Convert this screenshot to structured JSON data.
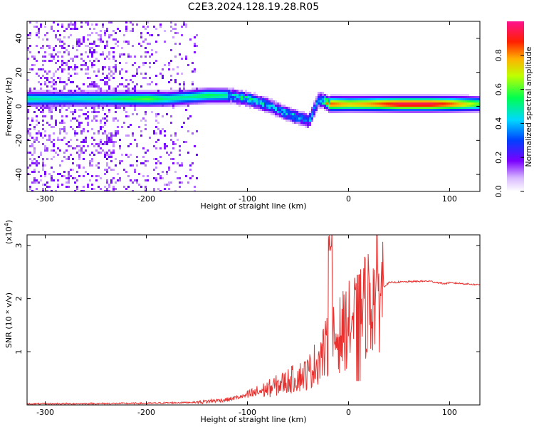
{
  "title": "C2E3.2024.128.19.28.R05",
  "chart_data": [
    {
      "type": "heatmap",
      "xlabel": "Height of straight line (km)",
      "ylabel": "Frequency (Hz)",
      "xlim": [
        -318,
        130
      ],
      "ylim": [
        -50,
        50
      ],
      "x_ticks": [
        -300,
        -200,
        -100,
        0,
        100
      ],
      "y_ticks": [
        -40,
        -20,
        0,
        20,
        40
      ],
      "colorbar": {
        "label": "Normalized spectral amplitude",
        "range": [
          0,
          1
        ],
        "ticks": [
          "0.0",
          "0.2",
          "0.4",
          "0.6",
          "0.8"
        ],
        "ticks_values": [
          0.0,
          0.2,
          0.4,
          0.6,
          0.8
        ]
      },
      "ridge": {
        "x": [
          -320,
          -280,
          -240,
          -200,
          -180,
          -160,
          -140,
          -120,
          -100,
          -80,
          -60,
          -40,
          -30,
          -20,
          0,
          20,
          50,
          80,
          100,
          130
        ],
        "frequency": [
          5,
          5,
          5,
          5,
          5,
          6,
          7,
          7,
          5,
          1,
          -4,
          -8,
          5,
          2,
          2,
          2,
          2,
          2,
          2,
          2
        ],
        "amplitude": [
          0.5,
          0.45,
          0.5,
          0.6,
          0.5,
          0.5,
          0.55,
          0.5,
          0.5,
          0.45,
          0.45,
          0.4,
          0.5,
          0.85,
          0.75,
          0.8,
          0.95,
          0.95,
          0.85,
          0.6
        ]
      }
    },
    {
      "type": "line",
      "xlabel": "Height of straight line (km)",
      "ylabel": "SNR (10 * v/v)",
      "y_multiplier": "(x10",
      "y_multiplier_exp": "4",
      "y_multiplier_close": ")",
      "xlim": [
        -318,
        130
      ],
      "ylim": [
        0,
        3.2
      ],
      "x_ticks": [
        -300,
        -200,
        -100,
        0,
        100
      ],
      "y_ticks": [
        1,
        2,
        3
      ],
      "color": "#e8312f",
      "series": [
        {
          "x": [
            -318,
            -200,
            -150,
            -120,
            -100,
            -80,
            -60,
            -40,
            -30,
            -20,
            -10,
            0,
            10,
            20,
            30,
            40,
            60,
            80,
            95,
            100,
            130
          ],
          "y": [
            0.02,
            0.03,
            0.05,
            0.1,
            0.18,
            0.3,
            0.45,
            0.6,
            0.85,
            1.1,
            1.3,
            1.5,
            1.7,
            1.95,
            2.15,
            2.3,
            2.32,
            2.33,
            2.28,
            2.3,
            2.26
          ]
        }
      ]
    }
  ]
}
